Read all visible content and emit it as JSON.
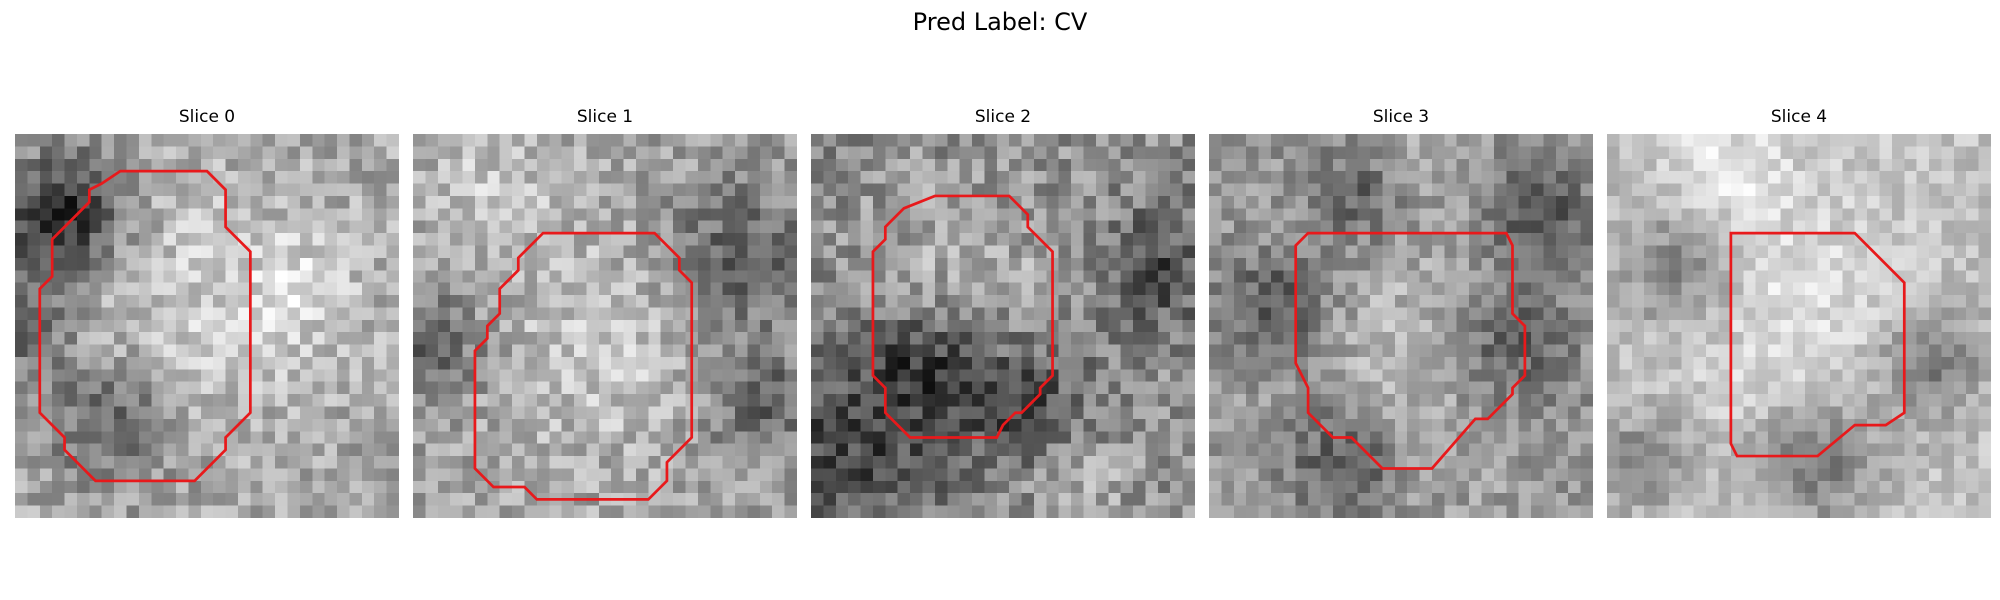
{
  "figure": {
    "title": "Pred Label: CV"
  },
  "slices": [
    {
      "label": "Slice 0",
      "texture": {
        "seed": 11,
        "mean": 0.66,
        "contrast": 0.16,
        "dark_blobs": [
          [
            0.1,
            0.25,
            0.12
          ],
          [
            0.0,
            0.5,
            0.1
          ],
          [
            0.25,
            0.75,
            0.12
          ],
          [
            0.15,
            0.18,
            0.1
          ]
        ],
        "light_blobs": [
          [
            0.45,
            0.45,
            0.22
          ],
          [
            0.75,
            0.4,
            0.12
          ]
        ]
      },
      "contour": [
        [
          8.5,
          3
        ],
        [
          15.5,
          3
        ],
        [
          17,
          4.5
        ],
        [
          17,
          7.5
        ],
        [
          19,
          9.5
        ],
        [
          19,
          22.5
        ],
        [
          17,
          24.5
        ],
        [
          17,
          25.5
        ],
        [
          14.5,
          28
        ],
        [
          6.5,
          28
        ],
        [
          4,
          25.5
        ],
        [
          4,
          24.5
        ],
        [
          2,
          22.5
        ],
        [
          2,
          12.5
        ],
        [
          3,
          11.5
        ],
        [
          3,
          8.5
        ],
        [
          6,
          5.5
        ],
        [
          6,
          4.5
        ],
        [
          7,
          4
        ],
        [
          7,
          4
        ]
      ]
    },
    {
      "label": "Slice 1",
      "texture": {
        "seed": 23,
        "mean": 0.64,
        "contrast": 0.16,
        "dark_blobs": [
          [
            0.85,
            0.32,
            0.14
          ],
          [
            0.05,
            0.55,
            0.1
          ],
          [
            0.9,
            0.7,
            0.1
          ]
        ],
        "light_blobs": [
          [
            0.5,
            0.55,
            0.22
          ],
          [
            0.2,
            0.15,
            0.12
          ]
        ]
      },
      "contour": [
        [
          10.5,
          8
        ],
        [
          19.5,
          8
        ],
        [
          21.5,
          10
        ],
        [
          21.5,
          11
        ],
        [
          22.5,
          12
        ],
        [
          22.5,
          24.5
        ],
        [
          20.5,
          26.5
        ],
        [
          20.5,
          28
        ],
        [
          19,
          29.5
        ],
        [
          10,
          29.5
        ],
        [
          9,
          28.5
        ],
        [
          6.5,
          28.5
        ],
        [
          5,
          27
        ],
        [
          5,
          17.5
        ],
        [
          6,
          16.5
        ],
        [
          6,
          15.5
        ],
        [
          7,
          14.5
        ],
        [
          7,
          12.5
        ],
        [
          8.5,
          11
        ],
        [
          8.5,
          10
        ]
      ]
    },
    {
      "label": "Slice 2",
      "texture": {
        "seed": 37,
        "mean": 0.55,
        "contrast": 0.18,
        "dark_blobs": [
          [
            0.1,
            0.8,
            0.18
          ],
          [
            0.55,
            0.7,
            0.12
          ],
          [
            0.9,
            0.35,
            0.1
          ],
          [
            0.3,
            0.6,
            0.1
          ]
        ],
        "light_blobs": [
          [
            0.4,
            0.35,
            0.18
          ],
          [
            0.7,
            0.9,
            0.1
          ]
        ]
      },
      "contour": [
        [
          10,
          5
        ],
        [
          16,
          5
        ],
        [
          17.5,
          6.5
        ],
        [
          17.5,
          7.5
        ],
        [
          19.5,
          9.5
        ],
        [
          19.5,
          19.5
        ],
        [
          18.5,
          20.5
        ],
        [
          18.5,
          21
        ],
        [
          17,
          22.5
        ],
        [
          16.5,
          22.5
        ],
        [
          15.5,
          23.5
        ],
        [
          15,
          24.5
        ],
        [
          8,
          24.5
        ],
        [
          6.5,
          23
        ],
        [
          6,
          22.5
        ],
        [
          6,
          20.5
        ],
        [
          5,
          19.5
        ],
        [
          5,
          9.5
        ],
        [
          6,
          8.5
        ],
        [
          6,
          7.5
        ],
        [
          7.5,
          6
        ]
      ]
    },
    {
      "label": "Slice 3",
      "texture": {
        "seed": 53,
        "mean": 0.6,
        "contrast": 0.14,
        "dark_blobs": [
          [
            0.18,
            0.45,
            0.1
          ],
          [
            0.4,
            0.15,
            0.1
          ],
          [
            0.78,
            0.55,
            0.12
          ],
          [
            0.35,
            0.85,
            0.1
          ],
          [
            0.85,
            0.2,
            0.1
          ]
        ],
        "light_blobs": [
          [
            0.55,
            0.55,
            0.2
          ],
          [
            0.5,
            0.05,
            0.12
          ]
        ]
      },
      "contour": [
        [
          8,
          8
        ],
        [
          24,
          8
        ],
        [
          24.5,
          9
        ],
        [
          24.5,
          14.5
        ],
        [
          25.5,
          15.5
        ],
        [
          25.5,
          19.5
        ],
        [
          24.5,
          20.5
        ],
        [
          24.5,
          21
        ],
        [
          22.5,
          23
        ],
        [
          21.5,
          23
        ],
        [
          18,
          27
        ],
        [
          14,
          27
        ],
        [
          11.5,
          24.5
        ],
        [
          10,
          24.5
        ],
        [
          8,
          22.5
        ],
        [
          8,
          20.5
        ],
        [
          7.5,
          19.5
        ],
        [
          7,
          18.5
        ],
        [
          7,
          9
        ]
      ]
    },
    {
      "label": "Slice 4",
      "texture": {
        "seed": 71,
        "mean": 0.76,
        "contrast": 0.11,
        "dark_blobs": [
          [
            0.2,
            0.35,
            0.12
          ],
          [
            0.55,
            0.85,
            0.12
          ],
          [
            0.85,
            0.6,
            0.1
          ],
          [
            0.1,
            0.85,
            0.08
          ]
        ],
        "light_blobs": [
          [
            0.45,
            0.45,
            0.2
          ],
          [
            0.3,
            0.1,
            0.12
          ]
        ]
      },
      "contour": [
        [
          10,
          8
        ],
        [
          20,
          8
        ],
        [
          24,
          12
        ],
        [
          24,
          22.5
        ],
        [
          22.5,
          23.5
        ],
        [
          20,
          23.5
        ],
        [
          17,
          26
        ],
        [
          10.5,
          26
        ],
        [
          10,
          25
        ],
        [
          10,
          9
        ]
      ]
    }
  ]
}
